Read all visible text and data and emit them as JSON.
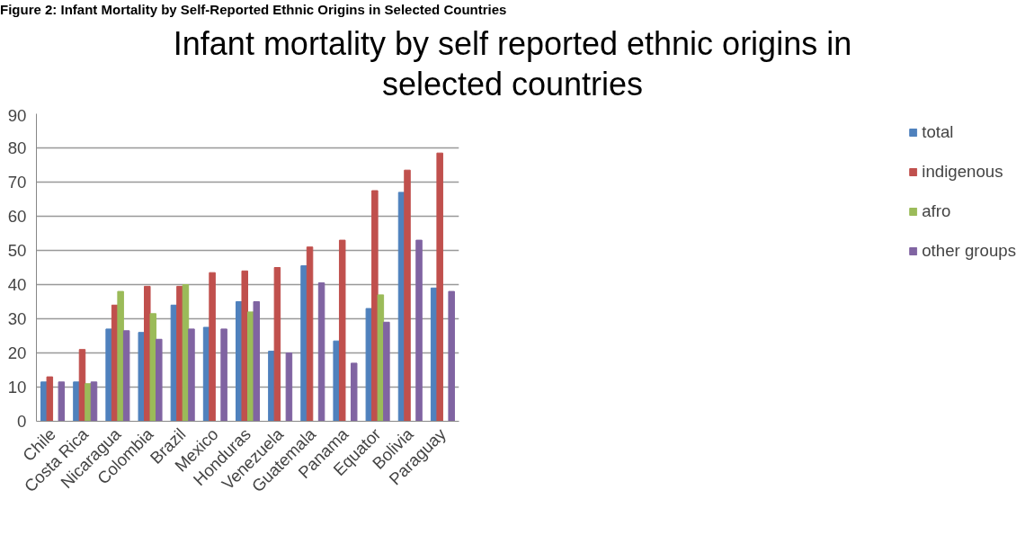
{
  "chart_data": {
    "type": "bar",
    "title": "Infant mortality by self reported ethnic origins in selected countries",
    "annotations": [
      "Figure 2: Infant Mortality by Self-Reported Ethnic Origins in Selected Countries"
    ],
    "categories": [
      "Chile",
      "Costa Rica",
      "Nicaragua",
      "Colombia",
      "Brazil",
      "Mexico",
      "Honduras",
      "Venezuela",
      "Guatemala",
      "Panama",
      "Equator",
      "Bolivia",
      "Paraguay"
    ],
    "series": [
      {
        "name": "total",
        "color": "#4f81bd",
        "values": [
          11.5,
          11.5,
          27,
          26,
          34,
          27.5,
          35,
          20.5,
          45.5,
          23.5,
          33,
          67,
          39
        ]
      },
      {
        "name": "indigenous",
        "color": "#c0504d",
        "values": [
          13,
          21,
          34,
          39.5,
          39.5,
          43.5,
          44,
          45,
          51,
          53,
          67.5,
          73.5,
          78.5
        ]
      },
      {
        "name": "afro",
        "color": "#9bbb59",
        "values": [
          null,
          11,
          38,
          31.5,
          40,
          null,
          32,
          null,
          null,
          null,
          37,
          null,
          null
        ]
      },
      {
        "name": "other groups",
        "color": "#8064a2",
        "values": [
          11.5,
          11.5,
          26.5,
          24,
          27,
          27,
          35,
          20,
          40.5,
          17,
          29,
          53,
          38
        ]
      }
    ],
    "ylim": [
      0,
      90
    ],
    "yticks": [
      0,
      10,
      20,
      30,
      40,
      50,
      60,
      70,
      80,
      90
    ],
    "grid": "y",
    "legend": "right"
  }
}
